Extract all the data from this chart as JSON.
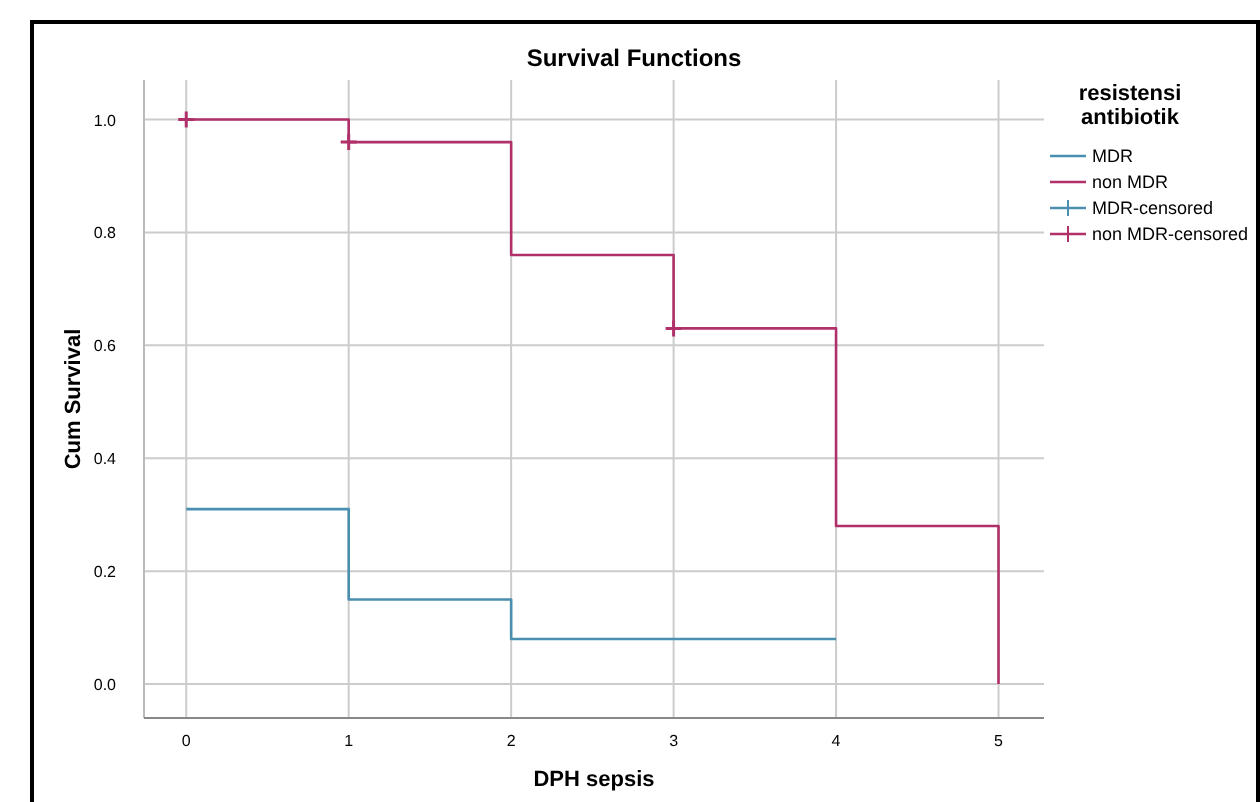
{
  "chart_data": {
    "type": "step",
    "title": "Survival Functions",
    "xlabel": "DPH sepsis",
    "ylabel": "Cum Survival",
    "legend_title": "resistensi antibiotik",
    "legend": "right",
    "grid": true,
    "xlim": [
      -0.26,
      5.28
    ],
    "xticks": [
      0,
      1,
      2,
      3,
      4,
      5
    ],
    "ylim": [
      -0.06,
      1.07
    ],
    "yticks": [
      {
        "value": 0,
        "label": "0.0"
      },
      0.2,
      0.4,
      0.6,
      0.8,
      {
        "value": 1,
        "label": "1.0"
      }
    ],
    "series": [
      {
        "name": "MDR",
        "color": "#4a8fb0",
        "x": [
          0,
          1,
          2,
          4
        ],
        "values": [
          0.31,
          0.15,
          0.08,
          0.08
        ]
      },
      {
        "name": "non MDR",
        "color": "#b0306a",
        "x": [
          0,
          1,
          2,
          3,
          4,
          5
        ],
        "values": [
          1.0,
          0.96,
          0.76,
          0.63,
          0.28,
          0
        ]
      },
      {
        "name": "MDR-censored",
        "type": "scatter",
        "marker": "cross",
        "color": "#4a8fb0"
      },
      {
        "name": "non MDR-censored",
        "type": "scatter",
        "marker": "cross",
        "color": "#b0306a",
        "x": [
          0,
          1,
          3
        ],
        "values": [
          1.0,
          0.96,
          0.63
        ]
      }
    ]
  }
}
